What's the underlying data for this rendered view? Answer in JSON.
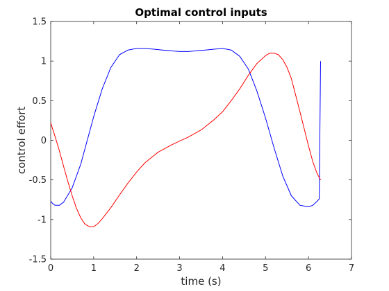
{
  "chart_data": {
    "type": "line",
    "title": "Optimal control inputs",
    "xlabel": "time (s)",
    "ylabel": "control effort",
    "xlim": [
      0,
      7
    ],
    "ylim": [
      -1.5,
      1.5
    ],
    "x_ticks": [
      0,
      1,
      2,
      3,
      4,
      5,
      6,
      7
    ],
    "y_ticks": [
      -1.5,
      -1,
      -0.5,
      0,
      0.5,
      1,
      1.5
    ],
    "x_tick_labels": [
      "0",
      "1",
      "2",
      "3",
      "4",
      "5",
      "6",
      "7"
    ],
    "y_tick_labels": [
      "-1.5",
      "-1",
      "-0.5",
      "0",
      "0.5",
      "1",
      "1.5"
    ],
    "grid": false,
    "legend": "none",
    "series": [
      {
        "color": "#0000ff",
        "x": [
          0,
          0.05,
          0.1,
          0.2,
          0.3,
          0.5,
          0.7,
          0.9,
          1.0,
          1.2,
          1.4,
          1.6,
          1.8,
          2.0,
          2.2,
          2.4,
          2.6,
          2.8,
          3.0,
          3.2,
          3.4,
          3.6,
          3.8,
          4.0,
          4.2,
          4.4,
          4.6,
          4.8,
          5.0,
          5.2,
          5.4,
          5.6,
          5.8,
          6.0,
          6.1,
          6.2,
          6.25,
          6.28
        ],
        "y": [
          -0.77,
          -0.8,
          -0.82,
          -0.82,
          -0.78,
          -0.6,
          -0.3,
          0.1,
          0.3,
          0.65,
          0.92,
          1.08,
          1.14,
          1.16,
          1.16,
          1.15,
          1.14,
          1.13,
          1.12,
          1.12,
          1.13,
          1.14,
          1.15,
          1.16,
          1.14,
          1.06,
          0.9,
          0.62,
          0.28,
          -0.1,
          -0.45,
          -0.7,
          -0.82,
          -0.84,
          -0.82,
          -0.77,
          -0.74,
          1.0
        ]
      },
      {
        "color": "#ff0000",
        "x": [
          0,
          0.1,
          0.2,
          0.3,
          0.4,
          0.5,
          0.6,
          0.7,
          0.8,
          0.9,
          1.0,
          1.1,
          1.2,
          1.4,
          1.6,
          1.8,
          2.0,
          2.2,
          2.5,
          2.8,
          3.0,
          3.2,
          3.5,
          3.8,
          4.0,
          4.2,
          4.4,
          4.6,
          4.8,
          5.0,
          5.1,
          5.2,
          5.3,
          5.4,
          5.5,
          5.6,
          5.8,
          6.0,
          6.1,
          6.2,
          6.28
        ],
        "y": [
          0.22,
          0.05,
          -0.13,
          -0.33,
          -0.52,
          -0.7,
          -0.86,
          -0.98,
          -1.06,
          -1.09,
          -1.09,
          -1.05,
          -0.99,
          -0.85,
          -0.69,
          -0.54,
          -0.4,
          -0.28,
          -0.15,
          -0.06,
          -0.01,
          0.04,
          0.13,
          0.26,
          0.36,
          0.5,
          0.65,
          0.82,
          0.97,
          1.07,
          1.1,
          1.1,
          1.08,
          1.02,
          0.92,
          0.78,
          0.36,
          -0.07,
          -0.27,
          -0.42,
          -0.5
        ]
      }
    ]
  }
}
